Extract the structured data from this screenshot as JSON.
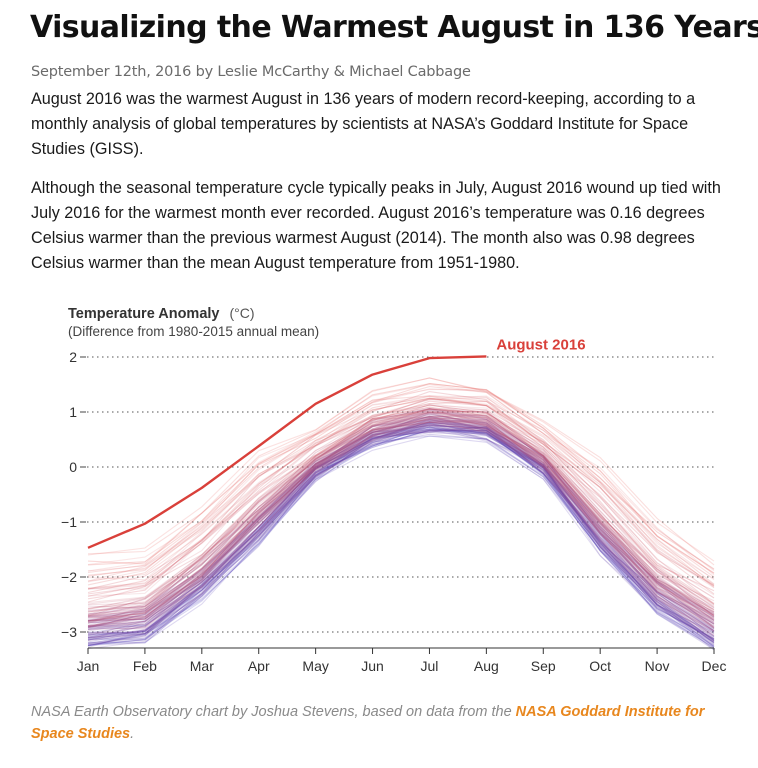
{
  "article": {
    "title": "Visualizing the Warmest August in 136 Years",
    "byline": "September 12th, 2016 by Leslie McCarthy & Michael Cabbage",
    "paragraphs": [
      "August 2016 was the warmest August in 136 years of modern record-keeping, according to a monthly analysis of global temperatures by scientists at NASA’s Goddard Institute for Space Studies (GISS).",
      "Although the seasonal temperature cycle typically peaks in July, August 2016 wound up tied with July 2016 for the warmest month ever recorded. August 2016’s temperature was 0.16 degrees Celsius warmer than the previous warmest August (2014). The month also was 0.98 degrees Celsius warmer than the mean August temperature from 1951-1980."
    ]
  },
  "caption": {
    "text": "NASA Earth Observatory chart by Joshua Stevens, based on data from the ",
    "link": "NASA Goddard Institute for Space Studies",
    "end": "."
  },
  "chart_data": {
    "type": "line",
    "ylabel": "Temperature Anomaly",
    "yunit": "(°C)",
    "ysublabel": "(Difference from 1980-2015 annual mean)",
    "categories": [
      "Jan",
      "Feb",
      "Mar",
      "Apr",
      "May",
      "Jun",
      "Jul",
      "Aug",
      "Sep",
      "Oct",
      "Nov",
      "Dec"
    ],
    "ylim": [
      -3.3,
      2.05
    ],
    "yticks": [
      2,
      1,
      0,
      -1,
      -2,
      -3
    ],
    "ytick_labels": [
      "2",
      "1",
      "0",
      "−1",
      "−2",
      "−3"
    ],
    "grid": "dotted horizontal",
    "highlight": {
      "name": "August 2016",
      "color": "#d9403a",
      "values": [
        -1.47,
        -1.03,
        -0.38,
        0.38,
        1.15,
        1.68,
        1.98,
        2.01
      ]
    },
    "background_series": {
      "description": "one line per year, 1880-2015, cool (blue/purple) to warm (pink/red)",
      "count": 136,
      "climatology": [
        -2.57,
        -2.45,
        -1.68,
        -0.68,
        0.18,
        0.78,
        1.03,
        0.92,
        0.25,
        -0.85,
        -1.93,
        -2.6
      ],
      "cold_color": "#4b3fbf",
      "warm_color": "#e8605a"
    }
  }
}
